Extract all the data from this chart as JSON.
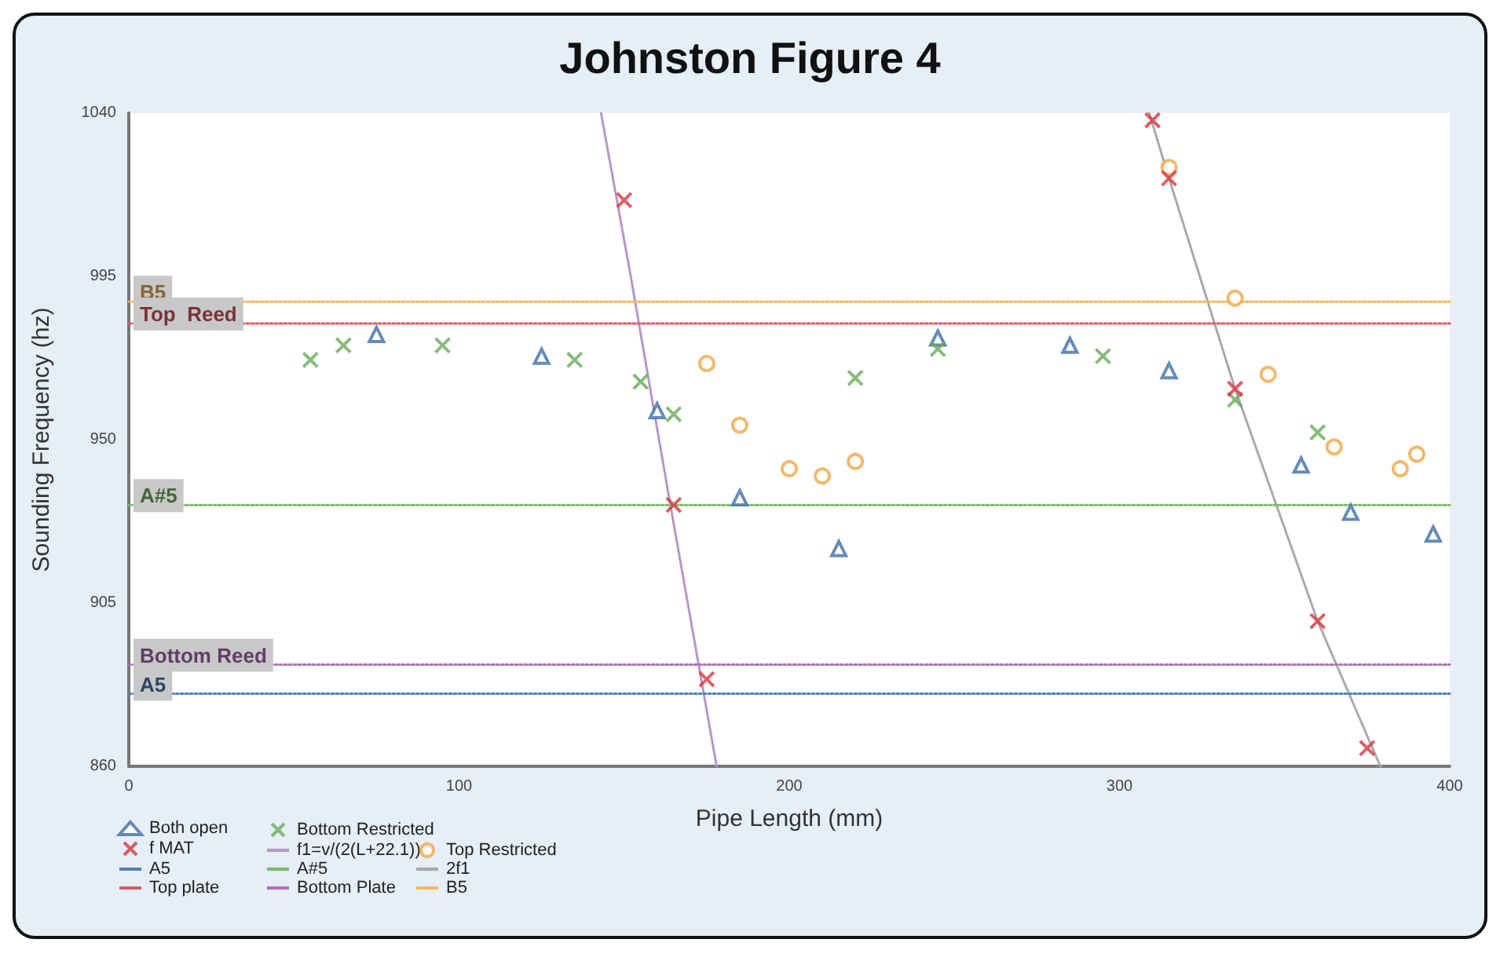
{
  "chart_data": {
    "type": "scatter",
    "title": "Johnston Figure 4",
    "xlabel": "Pipe Length (mm)",
    "ylabel": "Sounding Frequency (hz)",
    "xlim": [
      0,
      400
    ],
    "xticks": [
      0,
      100,
      200,
      300,
      400
    ],
    "ylim": [
      860,
      1040
    ],
    "yticks": [
      860,
      905,
      950,
      995,
      1040
    ],
    "grid": false,
    "legend": "bottom left",
    "series": [
      {
        "name": "Both open",
        "marker": "triangle",
        "color": "#3f6fa8",
        "x": [
          75,
          125,
          160,
          185,
          215,
          245,
          285,
          315,
          355,
          370,
          395
        ],
        "values": [
          979,
          973,
          958,
          934,
          920,
          978,
          976,
          969,
          943,
          930,
          924
        ]
      },
      {
        "name": "Bottom Restricted",
        "marker": "cross",
        "color": "#6aaa5a",
        "x": [
          55,
          65,
          95,
          135,
          155,
          165,
          220,
          245,
          295,
          335,
          360
        ],
        "values": [
          972,
          976,
          976,
          972,
          966,
          957,
          967,
          975,
          973,
          961,
          952
        ]
      },
      {
        "name": "Top Restricted",
        "marker": "circle",
        "color": "#f0a848",
        "x": [
          175,
          185,
          200,
          210,
          220,
          315,
          335,
          345,
          365,
          385,
          390
        ],
        "values": [
          971,
          954,
          942,
          940,
          944,
          1025,
          989,
          968,
          948,
          942,
          946
        ]
      },
      {
        "name": "f MAT",
        "marker": "cross",
        "color": "#d9363e",
        "x": [
          150,
          165,
          175,
          310,
          315,
          335,
          360,
          375
        ],
        "values": [
          1016,
          932,
          884,
          1038,
          1022,
          964,
          900,
          865
        ]
      },
      {
        "name": "f1=v/(2(L+22.1))",
        "type": "line",
        "color": "#b896c8",
        "line_style": "solid",
        "x": [
          143,
          152,
          164,
          178
        ],
        "values": [
          1040,
          995,
          932,
          860
        ]
      },
      {
        "name": "2f1",
        "type": "line",
        "color": "#aaaaaa",
        "line_style": "solid",
        "x": [
          309,
          315,
          335,
          360,
          379
        ],
        "values": [
          1040,
          1022,
          964,
          900,
          860
        ]
      },
      {
        "name": "A5",
        "type": "line",
        "color": "#5080b8",
        "line_style": "dotted",
        "x": [
          0,
          400
        ],
        "values": [
          880,
          880
        ]
      },
      {
        "name": "A#5",
        "type": "line",
        "color": "#7cba6a",
        "line_style": "dotted",
        "x": [
          0,
          400
        ],
        "values": [
          932,
          932
        ]
      },
      {
        "name": "B5",
        "type": "line",
        "color": "#f5b860",
        "line_style": "dotted",
        "x": [
          0,
          400
        ],
        "values": [
          988,
          988
        ]
      },
      {
        "name": "Top plate",
        "type": "line",
        "color": "#e05a64",
        "line_style": "dotted",
        "x": [
          0,
          400
        ],
        "values": [
          982,
          982
        ]
      },
      {
        "name": "Bottom Plate",
        "type": "line",
        "color": "#b070b8",
        "line_style": "dotted",
        "x": [
          0,
          400
        ],
        "values": [
          888,
          888
        ]
      }
    ],
    "annotations": [
      {
        "text": "B5",
        "y": 988
      },
      {
        "text": "Top  Reed",
        "y": 982
      },
      {
        "text": "A#5",
        "y": 932
      },
      {
        "text": "Bottom Reed",
        "y": 888
      },
      {
        "text": "A5",
        "y": 880
      }
    ]
  }
}
